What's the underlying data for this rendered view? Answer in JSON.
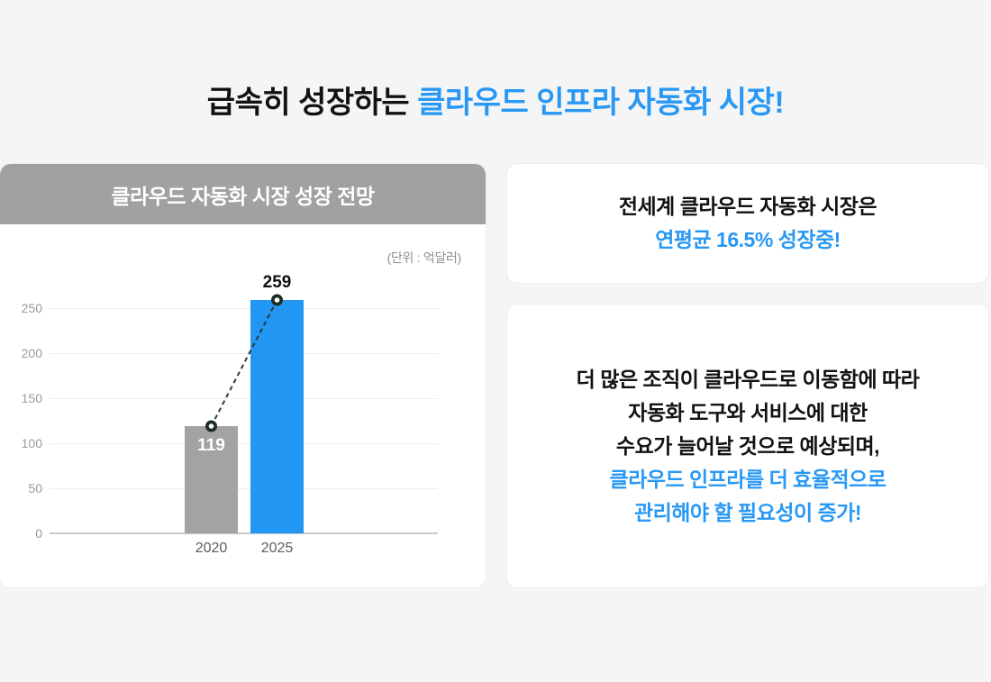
{
  "page": {
    "background": "#f5f5f6"
  },
  "colors": {
    "accent_blue": "#2898f4",
    "bar_blue": "#2196f3",
    "bar_gray": "#a3a3a3",
    "header_gray": "#a1a1a1",
    "marker_dark": "#1c2d24"
  },
  "title": {
    "part_black": "급속히 성장하는 ",
    "part_blue": "클라우드 인프라 자동화 시장!"
  },
  "chart_card": {
    "header": "클라우드 자동화 시장 성장 전망",
    "unit_label": "(단위 : 억달러)"
  },
  "chart_data": {
    "type": "bar",
    "title": "클라우드 자동화 시장 성장 전망",
    "unit": "억달러",
    "categories": [
      "2020",
      "2025"
    ],
    "values": [
      119,
      259
    ],
    "bar_colors": [
      "#a3a3a3",
      "#2196f3"
    ],
    "value_label_colors": [
      "#ffffff",
      "#111111"
    ],
    "value_label_inside": [
      true,
      false
    ],
    "yticks": [
      0,
      50,
      100,
      150,
      200,
      250
    ],
    "ylim": [
      0,
      280
    ],
    "grid": true,
    "legend": "none",
    "trend_line": {
      "style": "dashed",
      "color": "#2c3b33",
      "markers": "dark-ring"
    }
  },
  "info_cards": [
    {
      "lines": [
        {
          "text": "전세계 클라우드 자동화 시장은",
          "color": "#121212"
        },
        {
          "text": "연평균 16.5% 성장중!",
          "color": "#2898f4"
        }
      ]
    },
    {
      "lines": [
        {
          "text": "더 많은 조직이 클라우드로 이동함에 따라",
          "color": "#121212"
        },
        {
          "text": "자동화 도구와 서비스에 대한",
          "color": "#121212"
        },
        {
          "text": "수요가 늘어날 것으로 예상되며,",
          "color": "#121212"
        },
        {
          "text": "클라우드 인프라를 더 효율적으로",
          "color": "#2898f4"
        },
        {
          "text": "관리해야 할 필요성이 증가!",
          "color": "#2898f4"
        }
      ]
    }
  ]
}
